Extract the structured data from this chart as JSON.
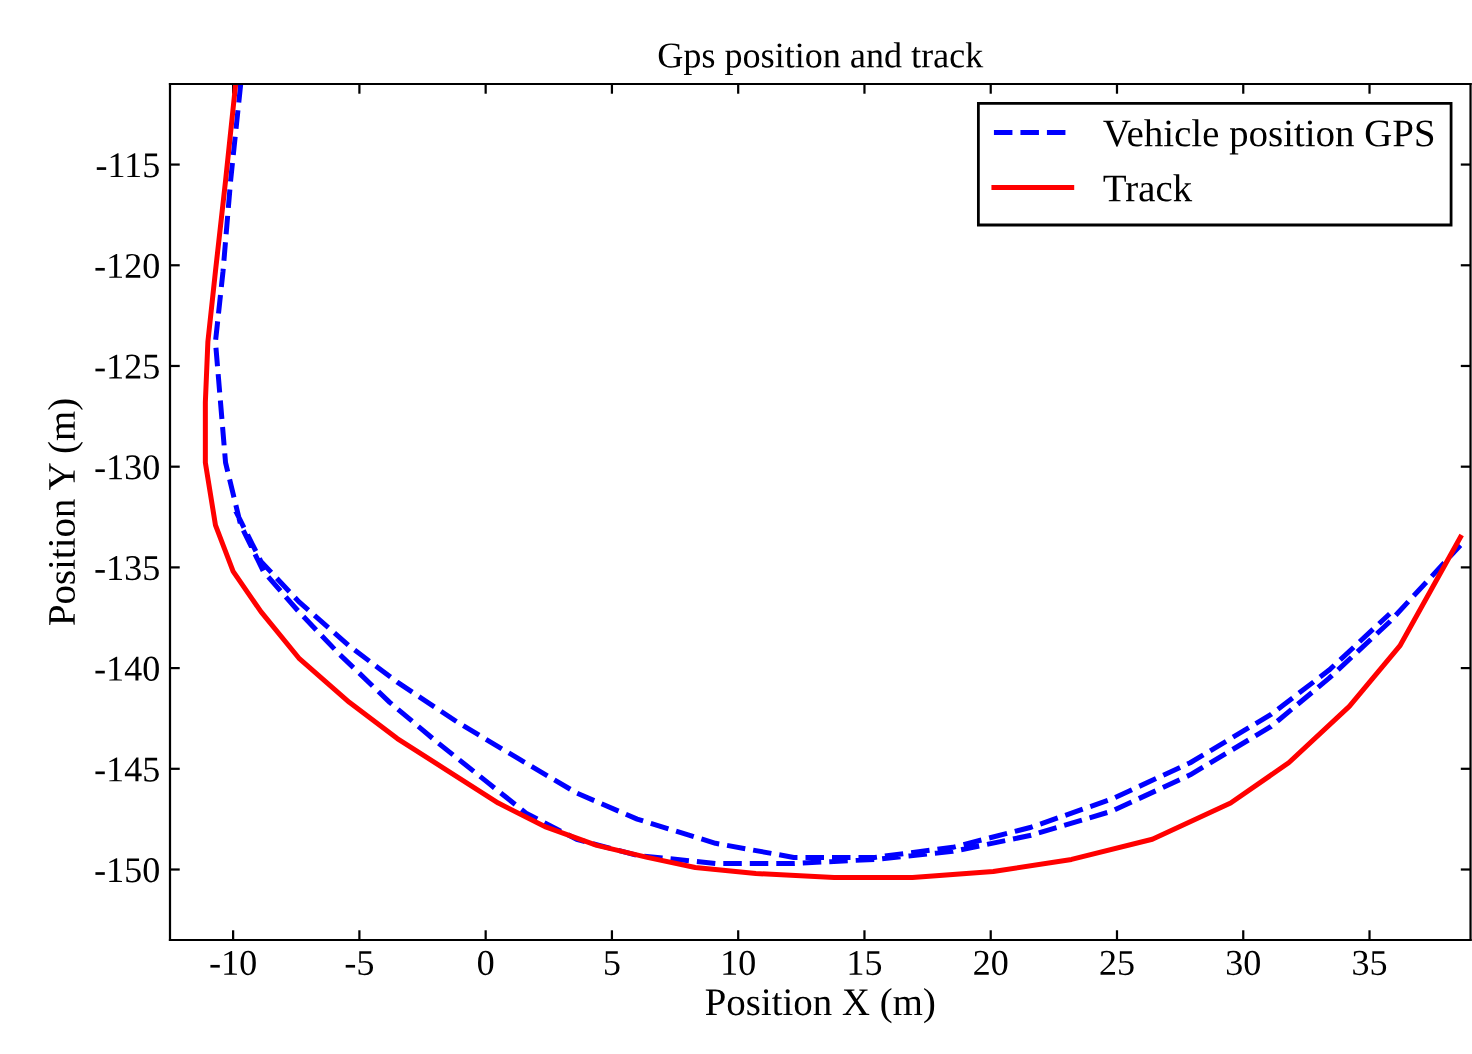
{
  "chart_data": {
    "type": "line",
    "title": "Gps position and track",
    "xlabel": "Position X (m)",
    "ylabel": "Position Y (m)",
    "xlim": [
      -12.5,
      39
    ],
    "ylim": [
      -153.5,
      -111
    ],
    "xticks": [
      -10,
      -5,
      0,
      5,
      10,
      15,
      20,
      25,
      30,
      35
    ],
    "yticks": [
      -150,
      -145,
      -140,
      -135,
      -130,
      -125,
      -120,
      -115
    ],
    "grid": false,
    "legend": "top right",
    "series": [
      {
        "name": "Vehicle position GPS",
        "color": "#0000ff",
        "line_style": "dashed",
        "x": [
          -9.7,
          -10.1,
          -10.4,
          -10.7,
          -10.5,
          -10.3,
          -9.7,
          -8.8,
          -7.4,
          -5.8,
          -3.8,
          -1.9,
          0.1,
          1.6,
          3.6,
          6.0,
          9.1,
          12.2,
          15.4,
          18.5,
          21.6,
          24.8,
          27.9,
          31.1,
          33.4,
          35.8,
          38.6,
          null,
          -9.9,
          -8.9,
          -7.4,
          -5.4,
          -3.5,
          -1.1,
          1.3,
          3.6,
          6.0,
          9.1,
          12.2,
          15.4,
          18.5,
          21.6,
          24.8,
          27.9,
          31.1,
          33.4,
          35.8
        ],
        "values": [
          -111.0,
          -115.8,
          -120.3,
          -123.8,
          -126.8,
          -129.8,
          -132.9,
          -135.2,
          -137.2,
          -139.3,
          -141.7,
          -143.7,
          -145.7,
          -147.2,
          -148.5,
          -149.3,
          -149.7,
          -149.7,
          -149.5,
          -149.1,
          -148.3,
          -147.1,
          -145.3,
          -142.9,
          -140.5,
          -137.7,
          -133.9,
          null,
          -132.2,
          -134.7,
          -136.7,
          -138.9,
          -140.7,
          -142.7,
          -144.5,
          -146.2,
          -147.5,
          -148.7,
          -149.4,
          -149.4,
          -148.9,
          -147.9,
          -146.5,
          -144.7,
          -142.3,
          -140.1,
          -137.3
        ]
      },
      {
        "name": "Track",
        "color": "#ff0000",
        "line_style": "solid",
        "x": [
          -9.9,
          -10.3,
          -10.7,
          -11.0,
          -11.1,
          -11.1,
          -10.7,
          -10.0,
          -8.9,
          -7.4,
          -5.4,
          -3.5,
          -1.5,
          0.5,
          2.4,
          4.4,
          6.4,
          8.3,
          10.7,
          13.8,
          16.9,
          20.1,
          23.2,
          26.4,
          29.5,
          31.8,
          34.2,
          36.2,
          38.6
        ],
        "values": [
          -111.0,
          -115.8,
          -120.3,
          -123.8,
          -126.8,
          -129.8,
          -132.9,
          -135.2,
          -137.2,
          -139.5,
          -141.7,
          -143.5,
          -145.1,
          -146.7,
          -147.9,
          -148.8,
          -149.4,
          -149.9,
          -150.2,
          -150.4,
          -150.4,
          -150.1,
          -149.5,
          -148.5,
          -146.7,
          -144.7,
          -141.9,
          -138.9,
          -133.5
        ]
      }
    ]
  }
}
